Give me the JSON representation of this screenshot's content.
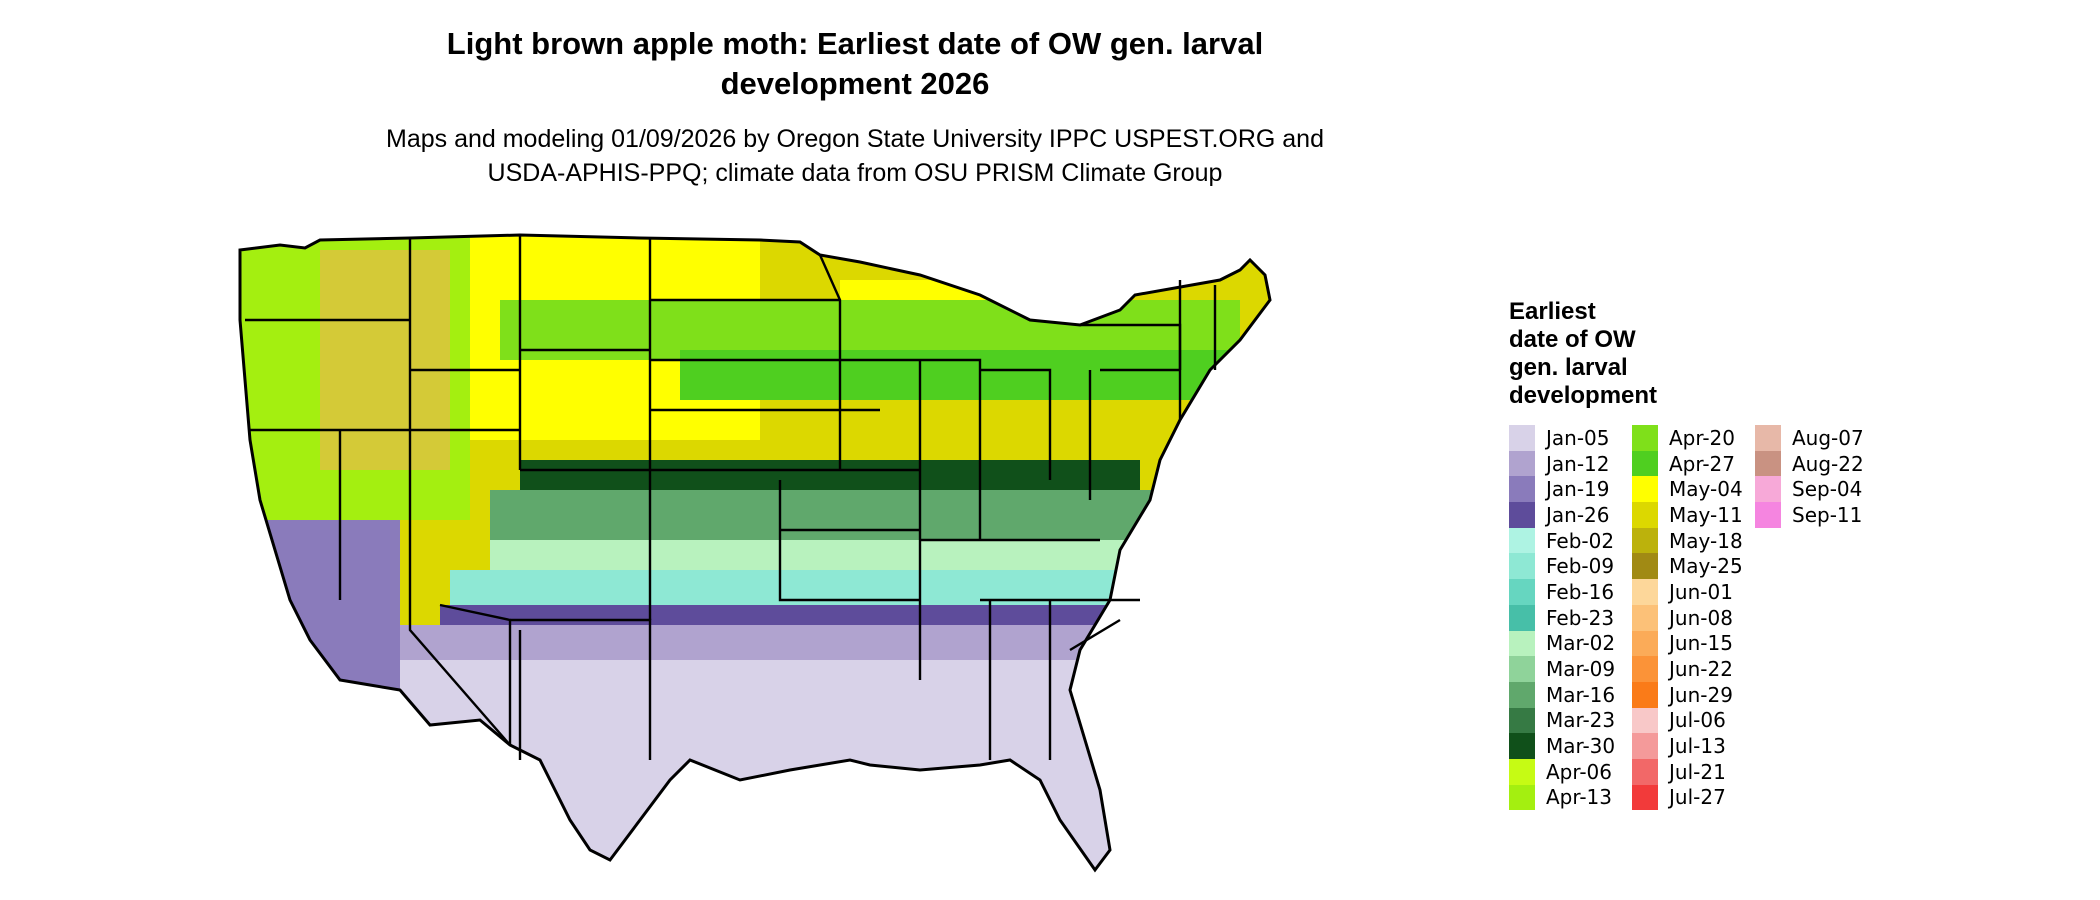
{
  "title": "Light brown apple moth: Earliest date of OW gen. larval development 2026",
  "title_line1": "Light brown apple moth: Earliest date of OW gen. larval",
  "title_line2": "development 2026",
  "subtitle_line1": "Maps and modeling 01/09/2026 by Oregon State University IPPC USPEST.ORG and",
  "subtitle_line2": "USDA-APHIS-PPQ; climate data from OSU PRISM Climate Group",
  "legend": {
    "title_lines": [
      "Earliest",
      "date of OW",
      "gen. larval",
      "development"
    ],
    "columns": [
      [
        {
          "label": "Jan-05",
          "color": "#d8d2e8"
        },
        {
          "label": "Jan-12",
          "color": "#b0a3cf"
        },
        {
          "label": "Jan-19",
          "color": "#8a7bbb"
        },
        {
          "label": "Jan-26",
          "color": "#5e4c9b"
        },
        {
          "label": "Feb-02",
          "color": "#aef3e3"
        },
        {
          "label": "Feb-09",
          "color": "#8ee8d4"
        },
        {
          "label": "Feb-16",
          "color": "#66d6c0"
        },
        {
          "label": "Feb-23",
          "color": "#47bfa8"
        },
        {
          "label": "Mar-02",
          "color": "#b8f2be"
        },
        {
          "label": "Mar-09",
          "color": "#8fd39a"
        },
        {
          "label": "Mar-16",
          "color": "#60a86c"
        },
        {
          "label": "Mar-23",
          "color": "#367a44"
        },
        {
          "label": "Mar-30",
          "color": "#10501a"
        },
        {
          "label": "Apr-06",
          "color": "#c6fb14"
        },
        {
          "label": "Apr-13",
          "color": "#a4ef10"
        }
      ],
      [
        {
          "label": "Apr-20",
          "color": "#7fe01a"
        },
        {
          "label": "Apr-27",
          "color": "#4fcf20"
        },
        {
          "label": "May-04",
          "color": "#ffff00"
        },
        {
          "label": "May-11",
          "color": "#dcd800"
        },
        {
          "label": "May-18",
          "color": "#bcb20c"
        },
        {
          "label": "May-25",
          "color": "#a18a14"
        },
        {
          "label": "Jun-01",
          "color": "#fdd79a"
        },
        {
          "label": "Jun-08",
          "color": "#fcc178"
        },
        {
          "label": "Jun-15",
          "color": "#fbab58"
        },
        {
          "label": "Jun-22",
          "color": "#fb9338"
        },
        {
          "label": "Jun-29",
          "color": "#fa7b18"
        },
        {
          "label": "Jul-06",
          "color": "#f8c8c8"
        },
        {
          "label": "Jul-13",
          "color": "#f49a9a"
        },
        {
          "label": "Jul-21",
          "color": "#f26868"
        },
        {
          "label": "Jul-27",
          "color": "#f23a3a"
        }
      ],
      [
        {
          "label": "Aug-07",
          "color": "#e7b8a8"
        },
        {
          "label": "Aug-22",
          "color": "#c99282"
        },
        {
          "label": "Sep-04",
          "color": "#f7a9d8"
        },
        {
          "label": "Sep-11",
          "color": "#f585e0"
        }
      ]
    ]
  }
}
